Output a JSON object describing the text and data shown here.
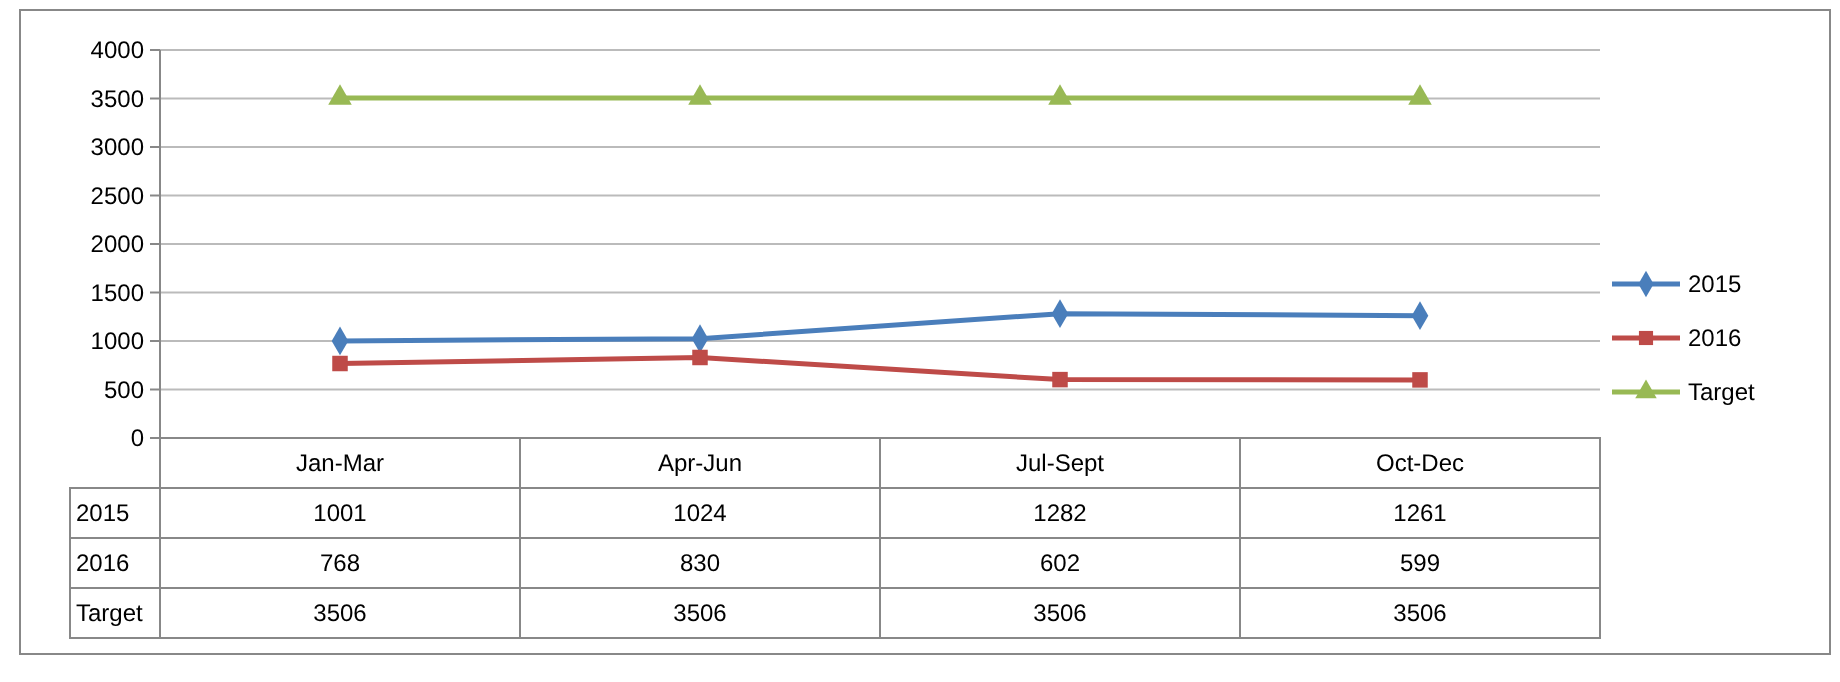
{
  "chart_data": {
    "type": "line",
    "categories": [
      "Jan-Mar",
      "Apr-Jun",
      "Jul-Sept",
      "Oct-Dec"
    ],
    "series": [
      {
        "name": "2015",
        "color": "#4a7ebb",
        "values": [
          1001,
          1024,
          1282,
          1261
        ],
        "marker": "diamond"
      },
      {
        "name": "2016",
        "color": "#be4b48",
        "values": [
          768,
          830,
          602,
          599
        ],
        "marker": "square"
      },
      {
        "name": "Target",
        "color": "#98b954",
        "values": [
          3506,
          3506,
          3506,
          3506
        ],
        "marker": "triangle"
      }
    ],
    "ylim": [
      0,
      4000
    ],
    "yticks": [
      0,
      500,
      1000,
      1500,
      2000,
      2500,
      3000,
      3500,
      4000
    ],
    "grid": "y",
    "legend": "right",
    "data_labels": true,
    "line_style": "solid"
  }
}
